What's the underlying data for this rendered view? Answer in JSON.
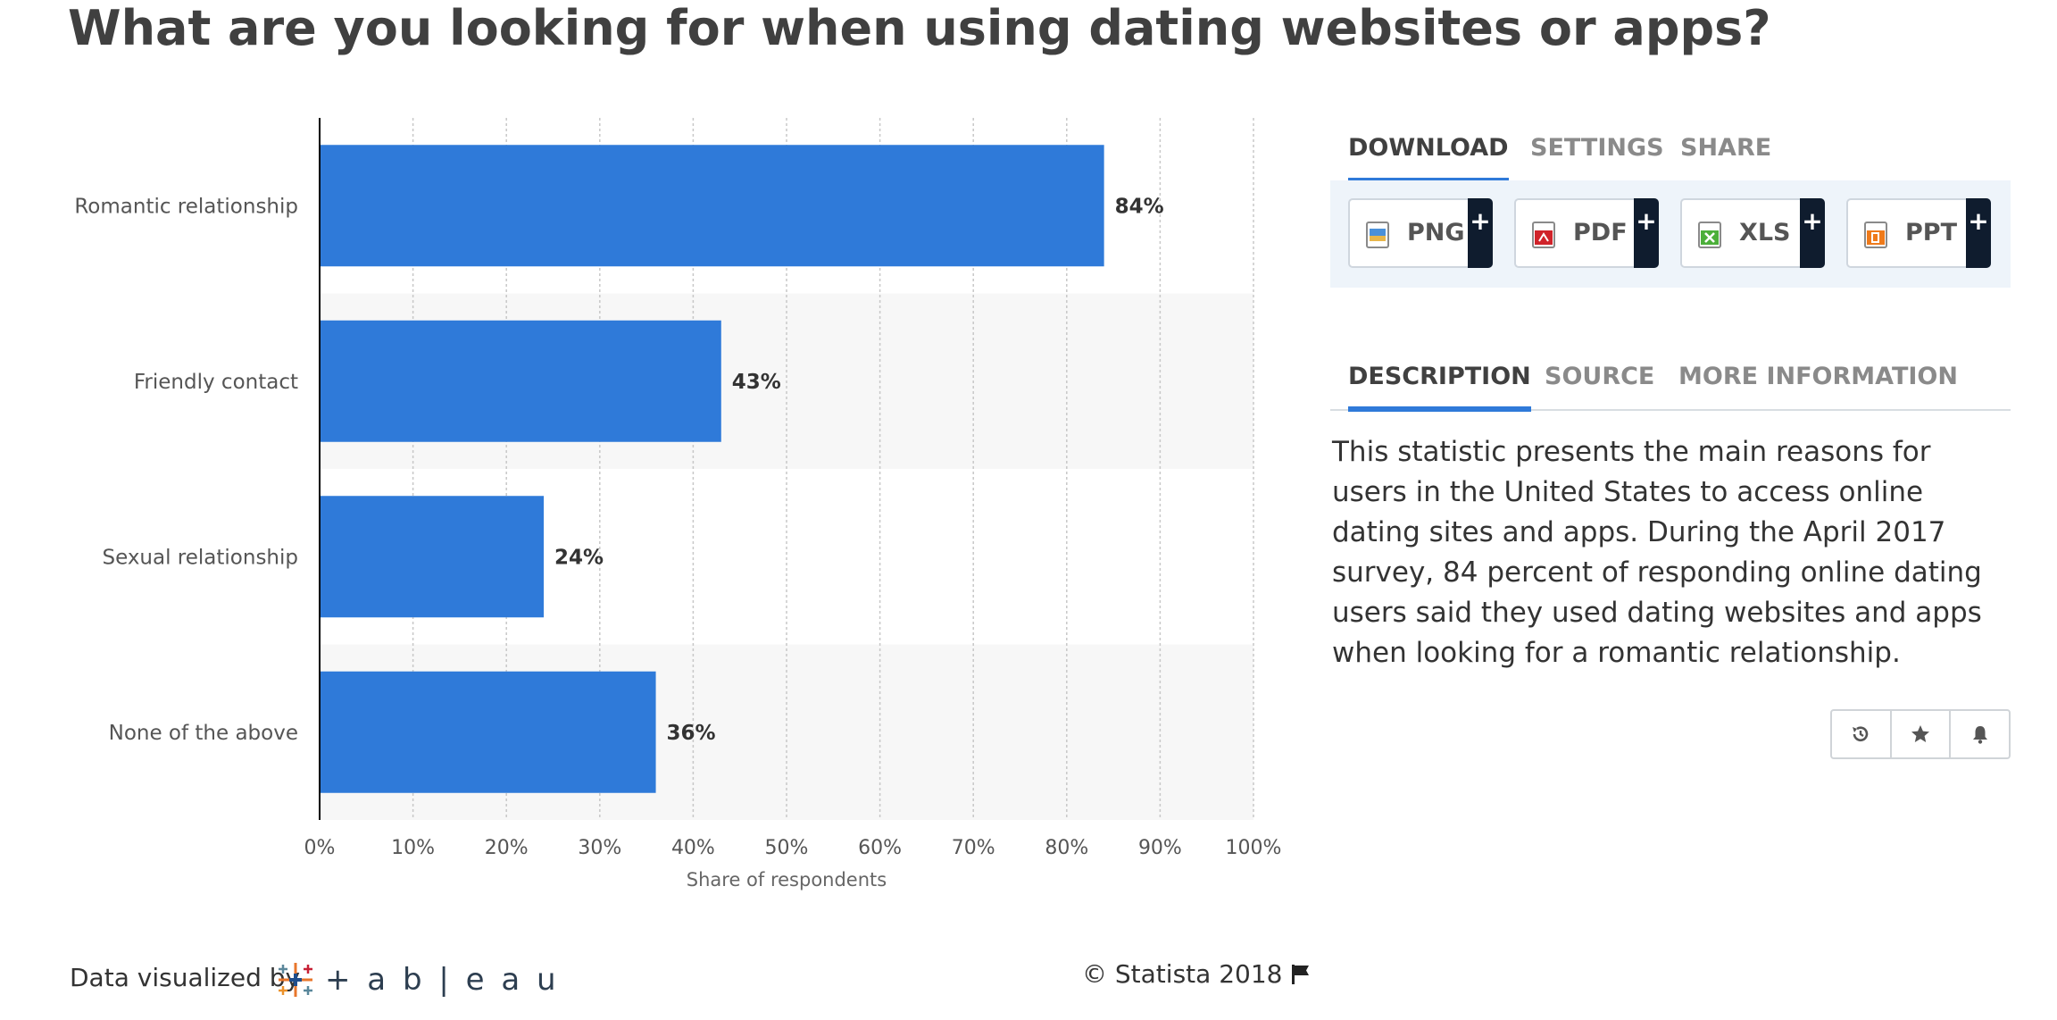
{
  "page": {
    "title": "What are you looking for when using dating websites or apps?"
  },
  "chart_data": {
    "type": "bar",
    "orientation": "horizontal",
    "categories": [
      "Romantic relationship",
      "Friendly contact",
      "Sexual relationship",
      "None of the above"
    ],
    "values": [
      84,
      43,
      24,
      36
    ],
    "data_labels": [
      "84%",
      "43%",
      "24%",
      "36%"
    ],
    "xlabel": "Share of respondents",
    "ylabel": "",
    "xlim": [
      0,
      100
    ],
    "x_ticks": [
      "0%",
      "10%",
      "20%",
      "30%",
      "40%",
      "50%",
      "60%",
      "70%",
      "80%",
      "90%",
      "100%"
    ],
    "grid": "vertical dotted",
    "bar_color": "#2f7ad9",
    "alternate_row_color": "#f7f7f7"
  },
  "download": {
    "tabs": [
      {
        "label": "DOWNLOAD",
        "active": true
      },
      {
        "label": "SETTINGS",
        "active": false
      },
      {
        "label": "SHARE",
        "active": false
      }
    ],
    "buttons": [
      {
        "label": "PNG",
        "icon": "png-file-icon",
        "plus": "+"
      },
      {
        "label": "PDF",
        "icon": "pdf-file-icon",
        "plus": "+"
      },
      {
        "label": "XLS",
        "icon": "xls-file-icon",
        "plus": "+"
      },
      {
        "label": "PPT",
        "icon": "ppt-file-icon",
        "plus": "+"
      }
    ]
  },
  "info": {
    "tabs": [
      {
        "label": "DESCRIPTION",
        "active": true
      },
      {
        "label": "SOURCE",
        "active": false
      },
      {
        "label": "MORE INFORMATION",
        "active": false
      }
    ],
    "description": "This statistic presents the main reasons for users in the United States to access online dating sites and apps. During the April 2017 survey, 84 percent of responding online dating users said they used dating websites and apps when looking for a romantic relationship."
  },
  "actions": [
    {
      "icon": "history-icon"
    },
    {
      "icon": "star-icon"
    },
    {
      "icon": "bell-icon"
    }
  ],
  "footer": {
    "visualized_by": "Data visualized by",
    "tableau_wordmark": "+ a b | e a u",
    "copyright": "© Statista 2018"
  },
  "colors": {
    "accent": "#2f7ad9",
    "dark": "#0f1c2e"
  }
}
